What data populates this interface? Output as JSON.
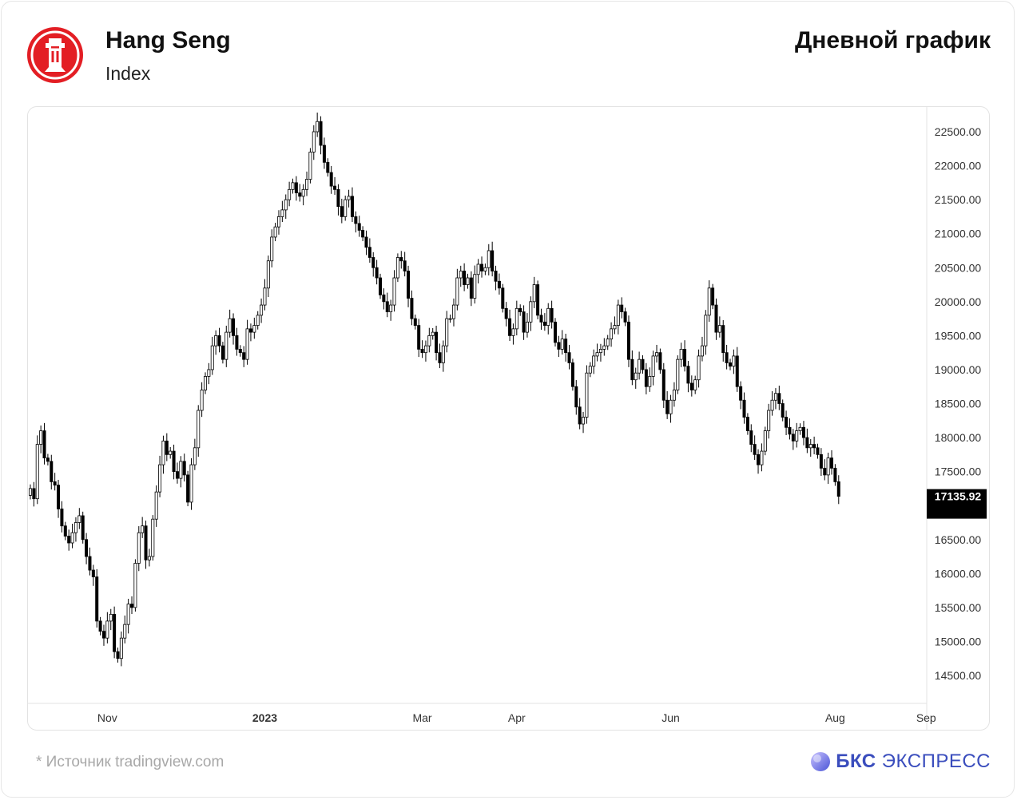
{
  "header": {
    "title": "Hang Seng",
    "subtitle": "Index",
    "chart_title": "Дневной график"
  },
  "footer": {
    "source": "*  Источник tradingview.com",
    "brand_bold": "БКС",
    "brand_rest": " ЭКСПРЕСС"
  },
  "colors": {
    "logo_red": "#e31e24",
    "brand_blue": "#3a4dbd",
    "candle": "#000000",
    "price_tag_bg": "#000000"
  },
  "chart_data": {
    "type": "candlestick",
    "title": "Дневной график",
    "instrument": "Hang Seng Index",
    "ylim": [
      14100,
      22750
    ],
    "y_ticks": [
      14500,
      15000,
      15500,
      16000,
      16500,
      17000,
      17500,
      18000,
      18500,
      19000,
      19500,
      20000,
      20500,
      21000,
      21500,
      22000,
      22500
    ],
    "y_tick_labels": [
      "14500.00",
      "15000.00",
      "15500.00",
      "16000.00",
      "16500.00",
      "",
      "17500.00",
      "18000.00",
      "18500.00",
      "19000.00",
      "19500.00",
      "20000.00",
      "20500.00",
      "21000.00",
      "21500.00",
      "22000.00",
      "22500.00"
    ],
    "x_tick_labels": [
      "Nov",
      "2023",
      "Mar",
      "Apr",
      "Jun",
      "Aug",
      "Sep"
    ],
    "x_tick_index": [
      22,
      67,
      112,
      139,
      183,
      230,
      256
    ],
    "last_price": 17135.92,
    "last_price_label": "17135.92",
    "grid": false,
    "closes": [
      17250,
      17100,
      17900,
      18100,
      17700,
      17650,
      17350,
      17300,
      16950,
      16700,
      16550,
      16450,
      16600,
      16750,
      16850,
      16500,
      16250,
      16050,
      15950,
      15300,
      15150,
      15050,
      15300,
      15400,
      14850,
      14750,
      15050,
      15250,
      15550,
      15500,
      16150,
      16600,
      16700,
      16200,
      16250,
      16800,
      17200,
      17600,
      17950,
      17750,
      17800,
      17500,
      17400,
      17650,
      17450,
      17050,
      17600,
      17850,
      18400,
      18700,
      18900,
      19000,
      19350,
      19500,
      19350,
      19150,
      19550,
      19750,
      19500,
      19300,
      19250,
      19150,
      19600,
      19550,
      19650,
      19800,
      19950,
      20200,
      20600,
      20950,
      21100,
      21250,
      21350,
      21500,
      21650,
      21750,
      21600,
      21550,
      21650,
      21800,
      22200,
      22500,
      22650,
      22300,
      22050,
      21900,
      21700,
      21650,
      21400,
      21250,
      21500,
      21550,
      21250,
      21150,
      21050,
      20950,
      20800,
      20650,
      20500,
      20350,
      20100,
      20000,
      19850,
      19950,
      20350,
      20650,
      20600,
      20450,
      20050,
      19750,
      19650,
      19300,
      19250,
      19350,
      19500,
      19550,
      19250,
      19100,
      19350,
      19750,
      19750,
      19950,
      20350,
      20450,
      20250,
      20350,
      20050,
      20400,
      20550,
      20450,
      20500,
      20750,
      20450,
      20300,
      20200,
      19900,
      19750,
      19500,
      19600,
      19900,
      19850,
      19550,
      19700,
      20000,
      20250,
      19800,
      19700,
      19650,
      19900,
      19700,
      19400,
      19300,
      19450,
      19250,
      19100,
      18750,
      18450,
      18200,
      18300,
      18950,
      19050,
      19200,
      19250,
      19300,
      19350,
      19450,
      19600,
      19650,
      19950,
      19850,
      19700,
      19150,
      18850,
      18950,
      19150,
      19000,
      18750,
      18900,
      19200,
      19250,
      19000,
      18550,
      18350,
      18550,
      18700,
      19150,
      19300,
      19050,
      18800,
      18700,
      18850,
      19200,
      19350,
      19800,
      20200,
      19950,
      19550,
      19650,
      19250,
      19100,
      19050,
      19200,
      18750,
      18550,
      18300,
      18100,
      17900,
      17750,
      17600,
      17800,
      18100,
      18400,
      18550,
      18650,
      18500,
      18300,
      18150,
      18050,
      17950,
      18100,
      18150,
      18000,
      17850,
      17900,
      17850,
      17750,
      17550,
      17450,
      17700,
      17550,
      17350,
      17136
    ],
    "opens": [
      17150,
      17250,
      17100,
      17900,
      18100,
      17700,
      17650,
      17350,
      17300,
      16950,
      16700,
      16550,
      16450,
      16600,
      16750,
      16850,
      16500,
      16250,
      16050,
      15950,
      15300,
      15150,
      15050,
      15300,
      15400,
      14850,
      14750,
      15050,
      15250,
      15550,
      15500,
      16150,
      16600,
      16700,
      16200,
      16250,
      16800,
      17200,
      17600,
      17950,
      17750,
      17800,
      17500,
      17400,
      17650,
      17450,
      17050,
      17600,
      17850,
      18400,
      18700,
      18900,
      19000,
      19350,
      19500,
      19350,
      19150,
      19550,
      19750,
      19500,
      19300,
      19250,
      19150,
      19600,
      19550,
      19650,
      19800,
      19950,
      20200,
      20600,
      20950,
      21100,
      21250,
      21350,
      21500,
      21650,
      21750,
      21600,
      21550,
      21650,
      21800,
      22200,
      22500,
      22650,
      22300,
      22050,
      21900,
      21700,
      21650,
      21400,
      21250,
      21500,
      21550,
      21250,
      21150,
      21050,
      20950,
      20800,
      20650,
      20500,
      20350,
      20100,
      20000,
      19850,
      19950,
      20350,
      20650,
      20600,
      20450,
      20050,
      19750,
      19650,
      19300,
      19250,
      19350,
      19500,
      19550,
      19250,
      19100,
      19350,
      19750,
      19750,
      19950,
      20350,
      20450,
      20250,
      20350,
      20050,
      20400,
      20550,
      20450,
      20500,
      20750,
      20450,
      20300,
      20200,
      19900,
      19750,
      19500,
      19600,
      19900,
      19850,
      19550,
      19700,
      20000,
      20250,
      19800,
      19700,
      19650,
      19900,
      19700,
      19400,
      19300,
      19450,
      19250,
      19100,
      18750,
      18450,
      18200,
      18300,
      18950,
      19050,
      19200,
      19250,
      19300,
      19350,
      19450,
      19600,
      19650,
      19950,
      19850,
      19700,
      19150,
      18850,
      18950,
      19150,
      19000,
      18750,
      18900,
      19200,
      19250,
      19000,
      18550,
      18350,
      18550,
      18700,
      19150,
      19300,
      19050,
      18800,
      18700,
      18850,
      19200,
      19350,
      19800,
      20200,
      19950,
      19550,
      19650,
      19250,
      19100,
      19050,
      19200,
      18750,
      18550,
      18300,
      18100,
      17900,
      17750,
      17600,
      17800,
      18100,
      18400,
      18550,
      18650,
      18500,
      18300,
      18150,
      18050,
      17950,
      18100,
      18150,
      18000,
      17850,
      17900,
      17850,
      17750,
      17550,
      17450,
      17700,
      17550,
      17350
    ]
  }
}
